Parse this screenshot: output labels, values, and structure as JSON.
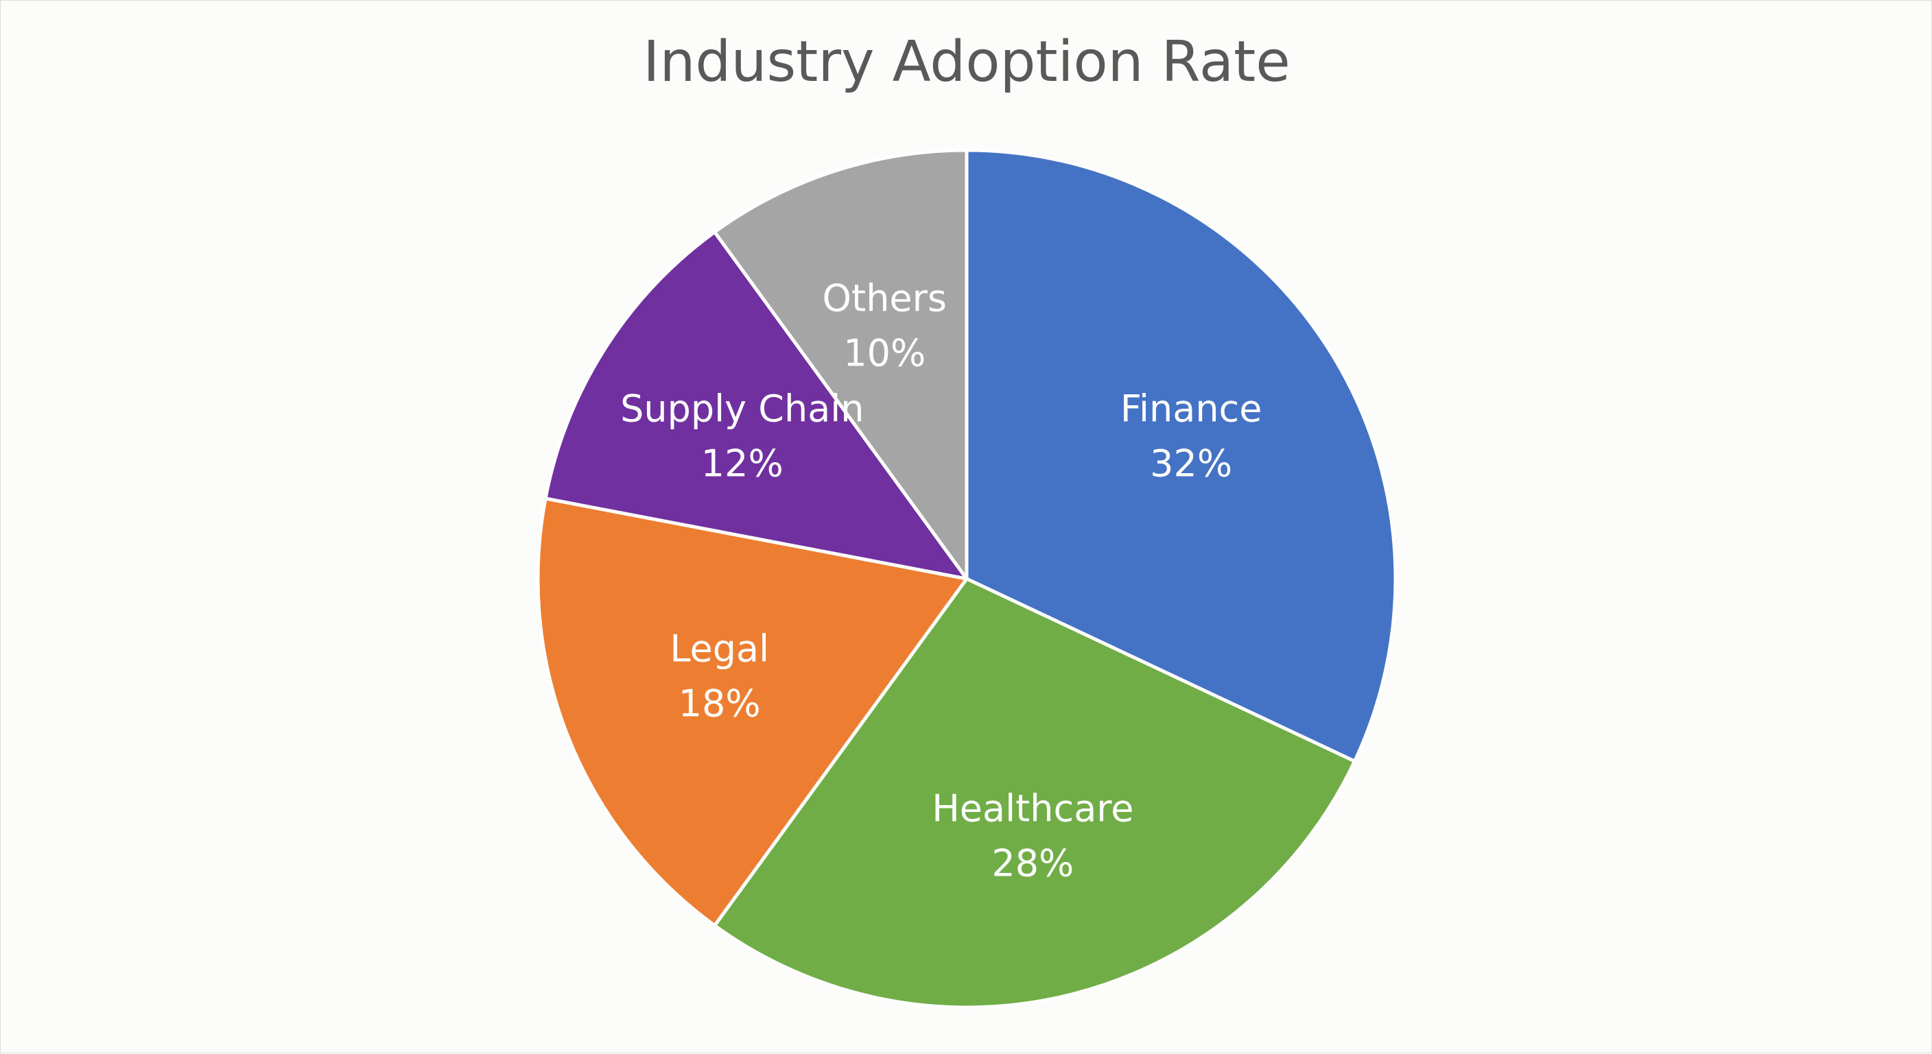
{
  "chart_data": {
    "type": "pie",
    "title": "Industry Adoption Rate",
    "slices": [
      {
        "label": "Finance",
        "value": 32,
        "value_label": "32%",
        "color": "#4472c4"
      },
      {
        "label": "Healthcare",
        "value": 28,
        "value_label": "28%",
        "color": "#70ad47"
      },
      {
        "label": "Legal",
        "value": 18,
        "value_label": "18%",
        "color": "#ed7d31"
      },
      {
        "label": "Supply Chain",
        "value": 12,
        "value_label": "12%",
        "color": "#7030a0"
      },
      {
        "label": "Others",
        "value": 10,
        "value_label": "10%",
        "color": "#a5a5a5"
      }
    ],
    "start_angle": "12 o'clock",
    "direction": "clockwise",
    "legend": "none",
    "data_labels": "inside"
  }
}
